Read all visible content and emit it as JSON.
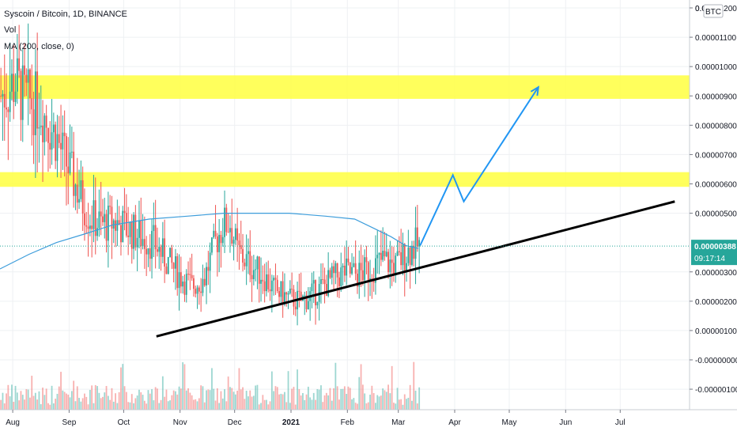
{
  "legend": {
    "title": "Syscoin / Bitcoin, 1D, BINANCE",
    "volume_label": "Vol",
    "ma_label": "MA (200, close, 0)"
  },
  "price_scale": {
    "currency_badge": "BTC",
    "last_price_label": "0.00000388",
    "countdown_label": "09:17:14"
  },
  "colors": {
    "up": "#26a69a",
    "down": "#ef5350",
    "ma": "#3d9ddb",
    "zone": "#ffff3f",
    "trendline": "#000000",
    "projection": "#2196f3",
    "last_price_bg": "#26a69a"
  },
  "chart_data": {
    "type": "candlestick",
    "title": "Syscoin / Bitcoin, 1D, BINANCE",
    "x_tick_labels": [
      "Aug",
      "Sep",
      "Oct",
      "Nov",
      "Dec",
      "2021",
      "Feb",
      "Mar",
      "Apr",
      "May",
      "Jun",
      "Jul"
    ],
    "y_tick_labels": [
      "0.00001200",
      "0.00001100",
      "0.00001000",
      "0.00000900",
      "0.00000800",
      "0.00000700",
      "0.00000600",
      "0.00000500",
      "0.00000300",
      "0.00000200",
      "0.00000100",
      "-0.00000000",
      "-0.00000100"
    ],
    "y_ticks": [
      1.2e-05,
      1.1e-05,
      1e-05,
      9e-06,
      8e-06,
      7e-06,
      6e-06,
      5e-06,
      3e-06,
      2e-06,
      1e-06,
      0,
      -1e-06
    ],
    "y_top_partial_label": "0.0",
    "y_range": [
      -1.5e-06,
      1.31e-05
    ],
    "last_price": 3.88e-06,
    "price_series": {
      "name": "Syscoin / Bitcoin",
      "anchors": [
        [
          "2020-07-25",
          9e-06
        ],
        [
          "2020-07-29",
          9.2e-06
        ],
        [
          "2020-08-02",
          9.5e-06
        ],
        [
          "2020-08-06",
          9e-06
        ],
        [
          "2020-08-10",
          8.8e-06
        ],
        [
          "2020-08-15",
          8.7e-06
        ],
        [
          "2020-08-20",
          8.1e-06
        ],
        [
          "2020-08-25",
          7.5e-06
        ],
        [
          "2020-08-30",
          6.7e-06
        ],
        [
          "2020-09-03",
          6.1e-06
        ],
        [
          "2020-09-07",
          5.5e-06
        ],
        [
          "2020-09-12",
          4.9e-06
        ],
        [
          "2020-09-18",
          4.6e-06
        ],
        [
          "2020-09-25",
          4.7e-06
        ],
        [
          "2020-10-02",
          4.5e-06
        ],
        [
          "2020-10-10",
          4.2e-06
        ],
        [
          "2020-10-17",
          4e-06
        ],
        [
          "2020-10-24",
          3.4e-06
        ],
        [
          "2020-10-31",
          2.9e-06
        ],
        [
          "2020-11-07",
          2.5e-06
        ],
        [
          "2020-11-14",
          2.8e-06
        ],
        [
          "2020-11-20",
          4e-06
        ],
        [
          "2020-11-24",
          4.6e-06
        ],
        [
          "2020-11-28",
          4.7e-06
        ],
        [
          "2020-12-02",
          3.7e-06
        ],
        [
          "2020-12-08",
          3.3e-06
        ],
        [
          "2020-12-16",
          2.9e-06
        ],
        [
          "2020-12-22",
          2.4e-06
        ],
        [
          "2020-12-30",
          2.1e-06
        ],
        [
          "2021-01-06",
          2e-06
        ],
        [
          "2021-01-14",
          2.3e-06
        ],
        [
          "2021-01-22",
          2.7e-06
        ],
        [
          "2021-01-30",
          3e-06
        ],
        [
          "2021-02-06",
          2.9e-06
        ],
        [
          "2021-02-13",
          3.1e-06
        ],
        [
          "2021-02-20",
          3.4e-06
        ],
        [
          "2021-02-27",
          3.2e-06
        ],
        [
          "2021-03-04",
          3.6e-06
        ],
        [
          "2021-03-10",
          3.9e-06
        ],
        [
          "2021-03-12",
          3.88e-06
        ]
      ]
    },
    "volume_series": {
      "name": "Vol"
    },
    "ma_series": {
      "name": "MA (200, close, 0)",
      "points": [
        [
          "2020-07-25",
          3.1e-06
        ],
        [
          "2020-08-10",
          3.6e-06
        ],
        [
          "2020-08-25",
          4e-06
        ],
        [
          "2020-09-10",
          4.3e-06
        ],
        [
          "2020-09-25",
          4.6e-06
        ],
        [
          "2020-10-15",
          4.8e-06
        ],
        [
          "2020-11-05",
          4.9e-06
        ],
        [
          "2020-11-25",
          5e-06
        ],
        [
          "2020-12-10",
          5e-06
        ],
        [
          "2020-12-31",
          5e-06
        ],
        [
          "2021-01-20",
          4.9e-06
        ],
        [
          "2021-02-05",
          4.8e-06
        ],
        [
          "2021-02-15",
          4.5e-06
        ],
        [
          "2021-02-25",
          4.2e-06
        ],
        [
          "2021-03-05",
          3.9e-06
        ],
        [
          "2021-03-12",
          3.8e-06
        ]
      ]
    },
    "zones": [
      {
        "from": 8.9e-06,
        "to": 9.7e-06
      },
      {
        "from": 5.9e-06,
        "to": 6.4e-06
      }
    ],
    "trendline": {
      "start": [
        "2020-10-19",
        8e-07
      ],
      "end": [
        "2021-07-31",
        5.4e-06
      ]
    },
    "projection": {
      "points": [
        [
          "2021-03-13",
          3.9e-06
        ],
        [
          "2021-03-31",
          6.3e-06
        ],
        [
          "2021-04-06",
          5.4e-06
        ],
        [
          "2021-05-17",
          9.3e-06
        ]
      ]
    }
  }
}
